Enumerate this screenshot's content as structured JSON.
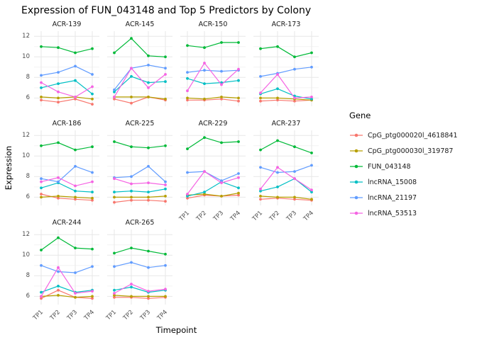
{
  "chart_data": {
    "type": "line",
    "title": "Expression of FUN_043148 and Top 5 Predictors by Colony",
    "xlabel": "Timepoint",
    "ylabel": "Expression",
    "legend_title": "Gene",
    "legend_position": "right",
    "grid": true,
    "x": [
      "TP1",
      "TP2",
      "TP3",
      "TP4"
    ],
    "ylim": [
      5.2,
      12.5
    ],
    "yticks": [
      6,
      8,
      10,
      12
    ],
    "genes": [
      {
        "name": "CpG_ptg000020l_4618841",
        "color": "#F8766D"
      },
      {
        "name": "CpG_ptg000030l_319787",
        "color": "#B79F00"
      },
      {
        "name": "FUN_043148",
        "color": "#00BA38"
      },
      {
        "name": "lncRNA_15008",
        "color": "#00BFC4"
      },
      {
        "name": "lncRNA_21197",
        "color": "#619CFF"
      },
      {
        "name": "lncRNA_53513",
        "color": "#F564E3"
      }
    ],
    "panels": [
      {
        "colony": "ACR-139",
        "values": [
          [
            5.8,
            5.6,
            5.9,
            5.4
          ],
          [
            6.1,
            6.0,
            6.1,
            5.9
          ],
          [
            11.0,
            10.9,
            10.4,
            10.8
          ],
          [
            7.0,
            7.4,
            7.7,
            6.4
          ],
          [
            8.2,
            8.5,
            9.1,
            8.3
          ],
          [
            7.5,
            6.6,
            6.1,
            7.1
          ]
        ]
      },
      {
        "colony": "ACR-145",
        "values": [
          [
            5.9,
            5.5,
            6.1,
            5.8
          ],
          [
            6.1,
            6.1,
            6.1,
            5.9
          ],
          [
            10.4,
            11.8,
            10.1,
            10.0
          ],
          [
            6.6,
            8.1,
            7.5,
            7.6
          ],
          [
            6.8,
            8.9,
            9.2,
            8.9
          ],
          [
            6.1,
            8.9,
            7.0,
            8.3
          ]
        ]
      },
      {
        "colony": "ACR-150",
        "values": [
          [
            5.8,
            5.8,
            5.9,
            5.7
          ],
          [
            6.0,
            5.9,
            6.1,
            6.0
          ],
          [
            11.1,
            10.9,
            11.4,
            11.4
          ],
          [
            7.9,
            7.4,
            7.5,
            7.7
          ],
          [
            8.5,
            8.7,
            8.6,
            8.7
          ],
          [
            6.7,
            9.4,
            7.3,
            8.8
          ]
        ]
      },
      {
        "colony": "ACR-173",
        "values": [
          [
            5.7,
            5.8,
            5.7,
            5.8
          ],
          [
            6.0,
            6.0,
            5.9,
            5.8
          ],
          [
            10.8,
            11.0,
            10.0,
            10.4
          ],
          [
            6.4,
            6.9,
            6.2,
            5.9
          ],
          [
            8.1,
            8.4,
            8.8,
            9.0
          ],
          [
            6.5,
            8.3,
            6.0,
            6.1
          ]
        ]
      },
      {
        "colony": "ACR-186",
        "values": [
          [
            6.3,
            5.9,
            5.8,
            5.7
          ],
          [
            6.0,
            6.1,
            6.0,
            5.9
          ],
          [
            11.0,
            11.3,
            10.6,
            10.9
          ],
          [
            6.9,
            7.4,
            6.6,
            6.5
          ],
          [
            7.8,
            7.5,
            9.0,
            8.4
          ],
          [
            7.5,
            7.9,
            7.1,
            7.5
          ]
        ]
      },
      {
        "colony": "ACR-225",
        "values": [
          [
            5.5,
            5.7,
            5.7,
            5.6
          ],
          [
            6.0,
            6.0,
            6.0,
            6.1
          ],
          [
            11.4,
            10.9,
            10.8,
            11.0
          ],
          [
            6.5,
            6.6,
            6.5,
            6.8
          ],
          [
            7.9,
            8.0,
            9.0,
            7.5
          ],
          [
            7.8,
            7.3,
            7.4,
            7.2
          ]
        ]
      },
      {
        "colony": "ACR-229",
        "values": [
          [
            5.9,
            6.2,
            6.1,
            6.2
          ],
          [
            6.2,
            6.3,
            6.1,
            6.4
          ],
          [
            10.7,
            11.8,
            11.3,
            11.4
          ],
          [
            6.1,
            6.5,
            7.5,
            6.9
          ],
          [
            8.4,
            8.5,
            7.6,
            8.3
          ],
          [
            6.3,
            8.5,
            7.4,
            7.9
          ]
        ]
      },
      {
        "colony": "ACR-237",
        "values": [
          [
            5.8,
            5.9,
            5.8,
            5.7
          ],
          [
            6.1,
            6.0,
            6.0,
            5.8
          ],
          [
            10.6,
            11.5,
            10.9,
            10.3
          ],
          [
            6.6,
            7.0,
            7.8,
            6.5
          ],
          [
            8.9,
            8.4,
            8.5,
            9.1
          ],
          [
            6.8,
            8.9,
            7.8,
            6.7
          ]
        ]
      },
      {
        "colony": "ACR-244",
        "values": [
          [
            5.8,
            6.6,
            5.9,
            5.8
          ],
          [
            6.0,
            6.1,
            5.9,
            6.0
          ],
          [
            10.5,
            11.7,
            10.7,
            10.6
          ],
          [
            6.4,
            7.0,
            6.4,
            6.6
          ],
          [
            9.0,
            8.4,
            8.3,
            8.9
          ],
          [
            6.0,
            8.8,
            6.3,
            6.5
          ]
        ]
      },
      {
        "colony": "ACR-265",
        "values": [
          [
            5.9,
            5.9,
            5.8,
            5.9
          ],
          [
            6.1,
            6.0,
            6.0,
            6.0
          ],
          [
            10.2,
            10.7,
            10.4,
            10.1
          ],
          [
            6.6,
            6.9,
            6.4,
            6.6
          ],
          [
            8.9,
            9.3,
            8.8,
            9.0
          ],
          [
            6.3,
            7.2,
            6.5,
            6.7
          ]
        ]
      }
    ]
  }
}
